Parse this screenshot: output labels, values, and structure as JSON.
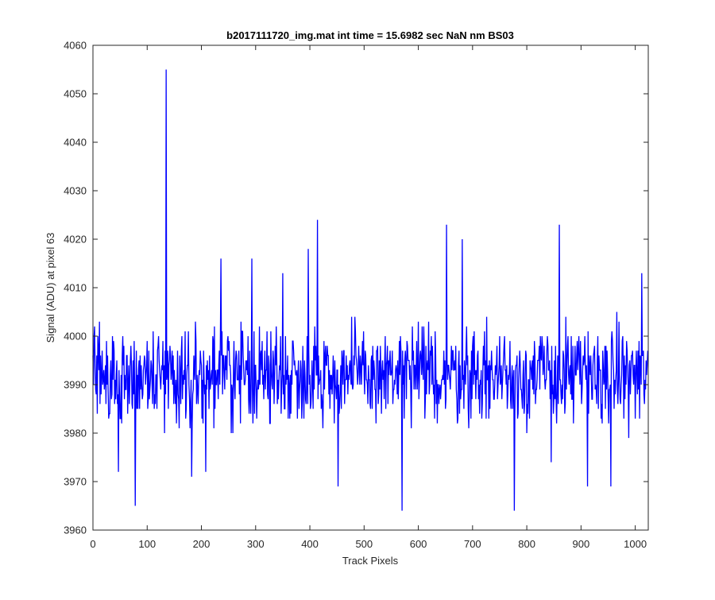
{
  "chart_data": {
    "type": "line",
    "title": "b2017111720_img.mat int time = 15.6982 sec  NaN nm BS03",
    "xlabel": "Track Pixels",
    "ylabel": "Signal (ADU) at pixel 63",
    "xlim": [
      0,
      1024
    ],
    "ylim": [
      3960,
      4060
    ],
    "xticks": [
      0,
      100,
      200,
      300,
      400,
      500,
      600,
      700,
      800,
      900,
      1000
    ],
    "yticks": [
      3960,
      3970,
      3980,
      3990,
      4000,
      4010,
      4020,
      4030,
      4040,
      4050,
      4060
    ],
    "grid": false,
    "legend": "none",
    "series": [
      {
        "color": "#0000ff",
        "n_points": 1024,
        "baseline": 3992,
        "noise_amplitude": 9,
        "peaks": [
          {
            "x": 135,
            "y": 4055
          },
          {
            "x": 414,
            "y": 4024
          },
          {
            "x": 652,
            "y": 4023
          },
          {
            "x": 681,
            "y": 4020
          },
          {
            "x": 860,
            "y": 4023
          },
          {
            "x": 236,
            "y": 4016
          },
          {
            "x": 293,
            "y": 4016
          },
          {
            "x": 350,
            "y": 4013
          },
          {
            "x": 397,
            "y": 4018
          },
          {
            "x": 1012,
            "y": 4013
          }
        ],
        "dips": [
          {
            "x": 78,
            "y": 3965
          },
          {
            "x": 570,
            "y": 3964
          },
          {
            "x": 777,
            "y": 3964
          },
          {
            "x": 452,
            "y": 3969
          },
          {
            "x": 912,
            "y": 3969
          },
          {
            "x": 955,
            "y": 3969
          },
          {
            "x": 47,
            "y": 3972
          },
          {
            "x": 182,
            "y": 3971
          },
          {
            "x": 208,
            "y": 3972
          },
          {
            "x": 845,
            "y": 3974
          }
        ]
      }
    ]
  }
}
